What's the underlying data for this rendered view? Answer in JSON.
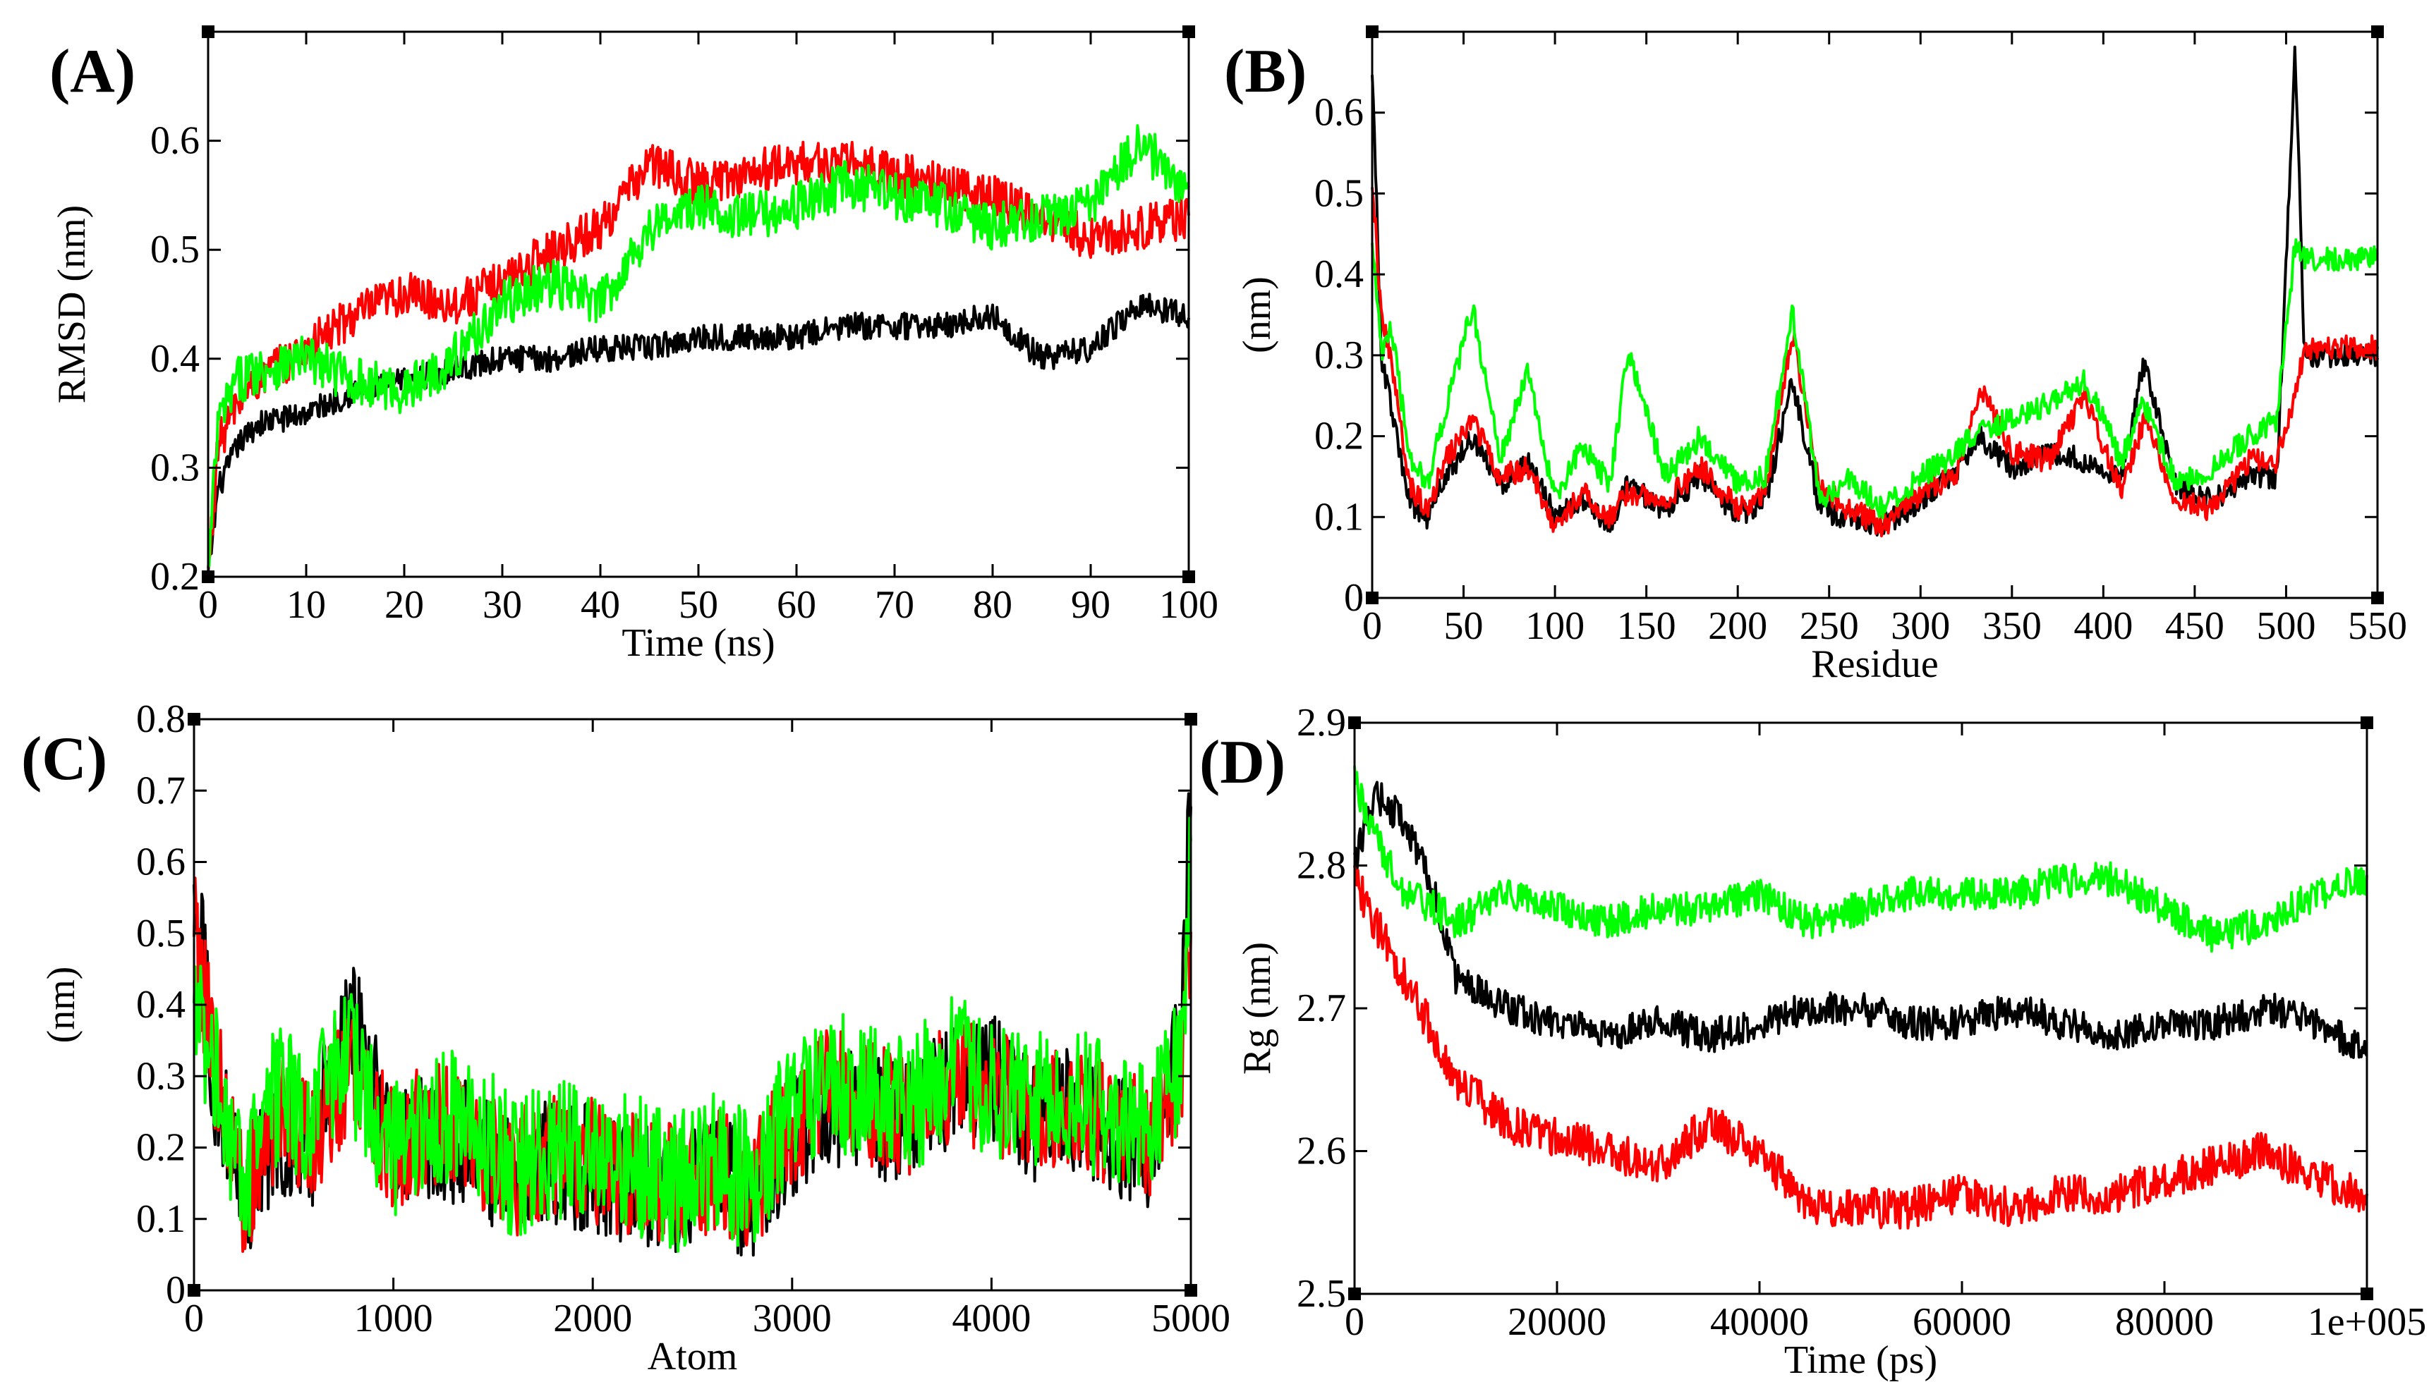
{
  "colors": {
    "black_series": "#000000",
    "red_series": "#ff0000",
    "green_series": "#00ff00"
  },
  "chart_data": [
    {
      "panel": "(A)",
      "type": "line",
      "xlabel": "Time (ns)",
      "ylabel": "RMSD (nm)",
      "xlim": [
        0,
        100
      ],
      "ylim": [
        0.2,
        0.7
      ],
      "xticks": [
        0,
        10,
        20,
        30,
        40,
        50,
        60,
        70,
        80,
        90,
        100
      ],
      "yticks": [
        0.2,
        0.3,
        0.4,
        0.5,
        0.6
      ],
      "x": [
        0,
        1,
        3,
        5,
        10,
        15,
        20,
        25,
        30,
        35,
        40,
        45,
        50,
        55,
        60,
        65,
        70,
        75,
        80,
        85,
        90,
        95,
        100
      ],
      "series": [
        {
          "name": "black",
          "color": "#000000",
          "noise": 0.012,
          "values": [
            0.2,
            0.28,
            0.32,
            0.34,
            0.35,
            0.37,
            0.38,
            0.39,
            0.4,
            0.4,
            0.41,
            0.41,
            0.42,
            0.42,
            0.42,
            0.43,
            0.43,
            0.43,
            0.44,
            0.4,
            0.41,
            0.45,
            0.44
          ]
        },
        {
          "name": "red",
          "color": "#ff0000",
          "noise": 0.02,
          "values": [
            0.2,
            0.32,
            0.36,
            0.38,
            0.41,
            0.44,
            0.46,
            0.45,
            0.47,
            0.5,
            0.52,
            0.58,
            0.56,
            0.57,
            0.58,
            0.58,
            0.57,
            0.56,
            0.55,
            0.53,
            0.51,
            0.52,
            0.53
          ]
        },
        {
          "name": "green",
          "color": "#00ff00",
          "noise": 0.022,
          "values": [
            0.2,
            0.34,
            0.38,
            0.39,
            0.4,
            0.38,
            0.37,
            0.4,
            0.45,
            0.47,
            0.45,
            0.52,
            0.54,
            0.53,
            0.54,
            0.56,
            0.55,
            0.54,
            0.52,
            0.53,
            0.54,
            0.6,
            0.55
          ]
        }
      ]
    },
    {
      "panel": "(B)",
      "type": "line",
      "xlabel": "Residue",
      "ylabel": "(nm)",
      "xlim": [
        0,
        550
      ],
      "ylim": [
        0,
        0.7
      ],
      "xticks": [
        0,
        50,
        100,
        150,
        200,
        250,
        300,
        350,
        400,
        450,
        500,
        550
      ],
      "yticks": [
        0,
        0.1,
        0.2,
        0.3,
        0.4,
        0.5,
        0.6
      ],
      "x": [
        0,
        5,
        10,
        20,
        30,
        40,
        55,
        70,
        85,
        100,
        115,
        130,
        140,
        160,
        180,
        200,
        215,
        230,
        245,
        260,
        280,
        300,
        320,
        332,
        350,
        370,
        390,
        410,
        422,
        440,
        460,
        480,
        495,
        505,
        510
      ],
      "series": [
        {
          "name": "black",
          "color": "#000000",
          "noise": 0.015,
          "values": [
            0.66,
            0.3,
            0.24,
            0.12,
            0.1,
            0.15,
            0.2,
            0.14,
            0.17,
            0.1,
            0.12,
            0.09,
            0.14,
            0.11,
            0.15,
            0.1,
            0.12,
            0.27,
            0.11,
            0.1,
            0.09,
            0.12,
            0.16,
            0.2,
            0.16,
            0.18,
            0.17,
            0.15,
            0.29,
            0.14,
            0.12,
            0.15,
            0.15,
            0.68,
            0.3
          ]
        },
        {
          "name": "red",
          "color": "#ff0000",
          "noise": 0.015,
          "values": [
            0.52,
            0.35,
            0.3,
            0.14,
            0.11,
            0.17,
            0.22,
            0.15,
            0.16,
            0.09,
            0.13,
            0.1,
            0.13,
            0.12,
            0.16,
            0.11,
            0.13,
            0.33,
            0.14,
            0.11,
            0.09,
            0.13,
            0.15,
            0.26,
            0.18,
            0.17,
            0.25,
            0.13,
            0.22,
            0.12,
            0.11,
            0.17,
            0.17,
            0.25,
            0.31
          ]
        },
        {
          "name": "green",
          "color": "#00ff00",
          "noise": 0.015,
          "values": [
            0.45,
            0.3,
            0.34,
            0.18,
            0.14,
            0.23,
            0.36,
            0.17,
            0.28,
            0.12,
            0.19,
            0.14,
            0.31,
            0.15,
            0.2,
            0.14,
            0.15,
            0.35,
            0.12,
            0.15,
            0.11,
            0.15,
            0.18,
            0.21,
            0.22,
            0.24,
            0.27,
            0.17,
            0.24,
            0.14,
            0.16,
            0.2,
            0.22,
            0.44,
            0.42
          ]
        }
      ]
    },
    {
      "panel": "(C)",
      "type": "line",
      "xlabel": "Atom",
      "ylabel": "(nm)",
      "xlim": [
        0,
        5000
      ],
      "ylim": [
        0,
        0.8
      ],
      "xticks": [
        0,
        1000,
        2000,
        3000,
        4000,
        5000
      ],
      "yticks": [
        0,
        0.1,
        0.2,
        0.3,
        0.4,
        0.5,
        0.6,
        0.7,
        0.8
      ],
      "x": [
        0,
        100,
        250,
        400,
        600,
        780,
        1000,
        1200,
        1400,
        1600,
        1800,
        2000,
        2200,
        2400,
        2600,
        2800,
        3000,
        3200,
        3400,
        3600,
        3800,
        4000,
        4200,
        4400,
        4600,
        4800,
        4950,
        5000
      ],
      "series": [
        {
          "name": "black",
          "color": "#000000",
          "noise": 0.09,
          "values": [
            0.58,
            0.3,
            0.12,
            0.22,
            0.2,
            0.4,
            0.18,
            0.22,
            0.2,
            0.15,
            0.18,
            0.17,
            0.15,
            0.14,
            0.16,
            0.13,
            0.22,
            0.25,
            0.24,
            0.24,
            0.28,
            0.3,
            0.24,
            0.26,
            0.22,
            0.2,
            0.35,
            0.7
          ]
        },
        {
          "name": "red",
          "color": "#ff0000",
          "noise": 0.09,
          "values": [
            0.5,
            0.32,
            0.13,
            0.24,
            0.22,
            0.3,
            0.19,
            0.24,
            0.21,
            0.16,
            0.19,
            0.18,
            0.16,
            0.15,
            0.17,
            0.14,
            0.24,
            0.28,
            0.26,
            0.25,
            0.3,
            0.28,
            0.25,
            0.27,
            0.23,
            0.21,
            0.3,
            0.5
          ]
        },
        {
          "name": "green",
          "color": "#00ff00",
          "noise": 0.1,
          "values": [
            0.4,
            0.33,
            0.14,
            0.27,
            0.25,
            0.32,
            0.2,
            0.25,
            0.24,
            0.17,
            0.2,
            0.2,
            0.18,
            0.15,
            0.18,
            0.15,
            0.26,
            0.3,
            0.27,
            0.26,
            0.32,
            0.28,
            0.26,
            0.28,
            0.24,
            0.22,
            0.32,
            0.6
          ]
        }
      ]
    },
    {
      "panel": "(D)",
      "type": "line",
      "xlabel": "Time (ps)",
      "ylabel": "Rg (nm)",
      "xlim": [
        0,
        100000
      ],
      "ylim": [
        2.5,
        2.9
      ],
      "xticks": [
        0,
        20000,
        40000,
        60000,
        80000,
        100000
      ],
      "xtick_labels": [
        "0",
        "20000",
        "40000",
        "60000",
        "80000",
        "1e+005"
      ],
      "yticks": [
        2.5,
        2.6,
        2.7,
        2.8,
        2.9
      ],
      "x": [
        0,
        2000,
        5000,
        8000,
        10000,
        15000,
        20000,
        25000,
        30000,
        35000,
        40000,
        45000,
        50000,
        55000,
        60000,
        65000,
        70000,
        75000,
        80000,
        85000,
        90000,
        95000,
        100000
      ],
      "series": [
        {
          "name": "black",
          "color": "#000000",
          "noise": 0.012,
          "values": [
            2.8,
            2.85,
            2.83,
            2.78,
            2.72,
            2.7,
            2.69,
            2.68,
            2.69,
            2.68,
            2.69,
            2.7,
            2.7,
            2.69,
            2.69,
            2.7,
            2.69,
            2.68,
            2.69,
            2.69,
            2.7,
            2.69,
            2.67
          ]
        },
        {
          "name": "red",
          "color": "#ff0000",
          "noise": 0.014,
          "values": [
            2.79,
            2.76,
            2.72,
            2.68,
            2.65,
            2.62,
            2.61,
            2.6,
            2.59,
            2.62,
            2.6,
            2.56,
            2.56,
            2.56,
            2.57,
            2.56,
            2.57,
            2.57,
            2.58,
            2.59,
            2.6,
            2.58,
            2.57
          ]
        },
        {
          "name": "green",
          "color": "#00ff00",
          "noise": 0.012,
          "values": [
            2.86,
            2.82,
            2.78,
            2.77,
            2.76,
            2.78,
            2.77,
            2.76,
            2.77,
            2.77,
            2.78,
            2.76,
            2.77,
            2.78,
            2.78,
            2.78,
            2.79,
            2.79,
            2.77,
            2.75,
            2.76,
            2.78,
            2.79
          ]
        }
      ]
    }
  ]
}
